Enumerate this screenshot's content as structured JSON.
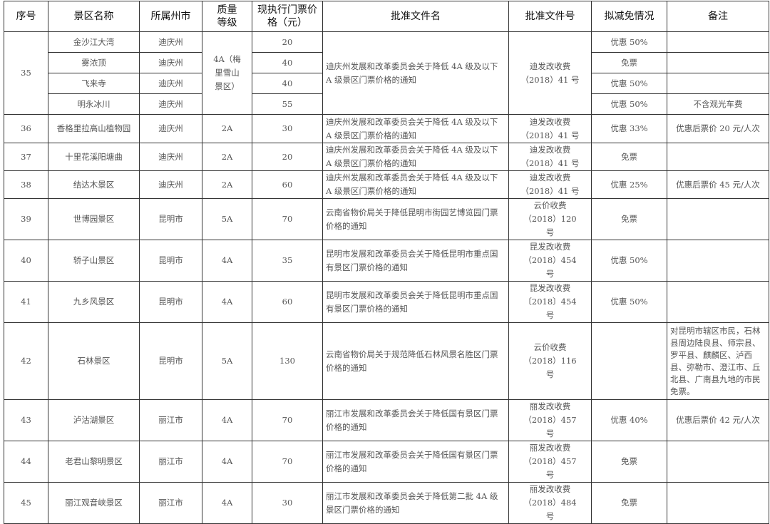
{
  "headers": [
    "序号",
    "景区名称",
    "所属州市",
    "质量等级",
    "现执行门票价格（元）",
    "批准文件名",
    "批准文件号",
    "拟减免情况",
    "备注"
  ],
  "rows": [
    {
      "no": "35",
      "grade": "4A（梅里雪山景区）",
      "doc_name": "迪庆州发展和改革委员会关于降低 4A 级及以下 A 级景区门票价格的通知",
      "doc_no": "迪发改收费（2018）41 号",
      "spots": [
        {
          "name": "金沙江大湾",
          "city": "迪庆州",
          "price": "20",
          "discount": "优惠 50%",
          "note": ""
        },
        {
          "name": "雾浓顶",
          "city": "迪庆州",
          "price": "40",
          "discount": "免票",
          "note": ""
        },
        {
          "name": "飞来寺",
          "city": "迪庆州",
          "price": "40",
          "discount": "优惠 50%",
          "note": ""
        },
        {
          "name": "明永冰川",
          "city": "迪庆州",
          "price": "55",
          "discount": "优惠 50%",
          "note": "不含观光车费"
        }
      ]
    },
    {
      "no": "36",
      "grade": "2A",
      "doc_name": "迪庆州发展和改革委员会关于降低 4A 级及以下 A 级景区门票价格的通知",
      "doc_no": "迪发改收费（2018）41 号",
      "spots": [
        {
          "name": "香格里拉高山植物园",
          "city": "迪庆州",
          "price": "30",
          "discount": "优惠 33%",
          "note": "优惠后票价 20 元/人次"
        }
      ]
    },
    {
      "no": "37",
      "grade": "2A",
      "doc_name": "迪庆州发展和改革委员会关于降低 4A 级及以下 A 级景区门票价格的通知",
      "doc_no": "迪发改收费（2018）41 号",
      "spots": [
        {
          "name": "十里花溪阳塘曲",
          "city": "迪庆州",
          "price": "20",
          "discount": "免票",
          "note": ""
        }
      ]
    },
    {
      "no": "38",
      "grade": "2A",
      "doc_name": "迪庆州发展和改革委员会关于降低 4A 级及以下 A 级景区门票价格的通知",
      "doc_no": "迪发改收费（2018）41 号",
      "spots": [
        {
          "name": "结达木景区",
          "city": "迪庆州",
          "price": "60",
          "discount": "优惠 25%",
          "note": "优惠后票价 45 元/人次"
        }
      ]
    },
    {
      "no": "39",
      "grade": "5A",
      "doc_name": "云南省物价局关于降低昆明市街园艺博览园门票价格的通知",
      "doc_no": "云价收费（2018）120 号",
      "spots": [
        {
          "name": "世博园景区",
          "city": "昆明市",
          "price": "70",
          "discount": "免票",
          "note": ""
        }
      ]
    },
    {
      "no": "40",
      "grade": "4A",
      "doc_name": "昆明市发展和改革委员会关于降低昆明市重点国有景区门票价格的通知",
      "doc_no": "昆发改收费（2018）454 号",
      "spots": [
        {
          "name": "轿子山景区",
          "city": "昆明市",
          "price": "35",
          "discount": "优惠 50%",
          "note": ""
        }
      ]
    },
    {
      "no": "41",
      "grade": "4A",
      "doc_name": "昆明市发展和改革委员会关于降低昆明市重点国有景区门票价格的通知",
      "doc_no": "昆发改收费〔2018〕454 号",
      "spots": [
        {
          "name": "九乡风景区",
          "city": "昆明市",
          "price": "60",
          "discount": "优惠 50%",
          "note": ""
        }
      ]
    },
    {
      "no": "42",
      "grade": "5A",
      "doc_name": "云南省物价局关于规范降低石林风景名胜区门票价格的通知",
      "doc_no": "云价收费（2018）116 号",
      "spots": [
        {
          "name": "石林景区",
          "city": "昆明市",
          "price": "130",
          "discount": "",
          "note": "对昆明市辖区市民，石林县周边陆良县、师宗县、罗平县、麒麟区、泸西县、弥勒市、澄江市、丘北县、广南县九地的市民免票。"
        }
      ]
    },
    {
      "no": "43",
      "grade": "4A",
      "doc_name": "丽江市发展和改革委员会关于降低国有景区门票价格的通知",
      "doc_no": "丽发改收费（2018）457 号",
      "spots": [
        {
          "name": "泸沽湖景区",
          "city": "丽江市",
          "price": "70",
          "discount": "优惠 40%",
          "note": "优惠后票价 42 元/人次"
        }
      ]
    },
    {
      "no": "44",
      "grade": "4A",
      "doc_name": "丽江市发展和改革委员会关于降低国有景区门票价格的通知",
      "doc_no": "丽发改收费（2018）457 号",
      "spots": [
        {
          "name": "老君山黎明景区",
          "city": "丽江市",
          "price": "70",
          "discount": "免票",
          "note": ""
        }
      ]
    },
    {
      "no": "45",
      "grade": "4A",
      "doc_name": "丽江市发展和改革委员会关于降低第二批 4A 级景区门票价格的通知",
      "doc_no": "丽发改收费（2018）484 号",
      "spots": [
        {
          "name": "丽江观音峡景区",
          "city": "丽江市",
          "price": "30",
          "discount": "免票",
          "note": ""
        }
      ]
    }
  ]
}
